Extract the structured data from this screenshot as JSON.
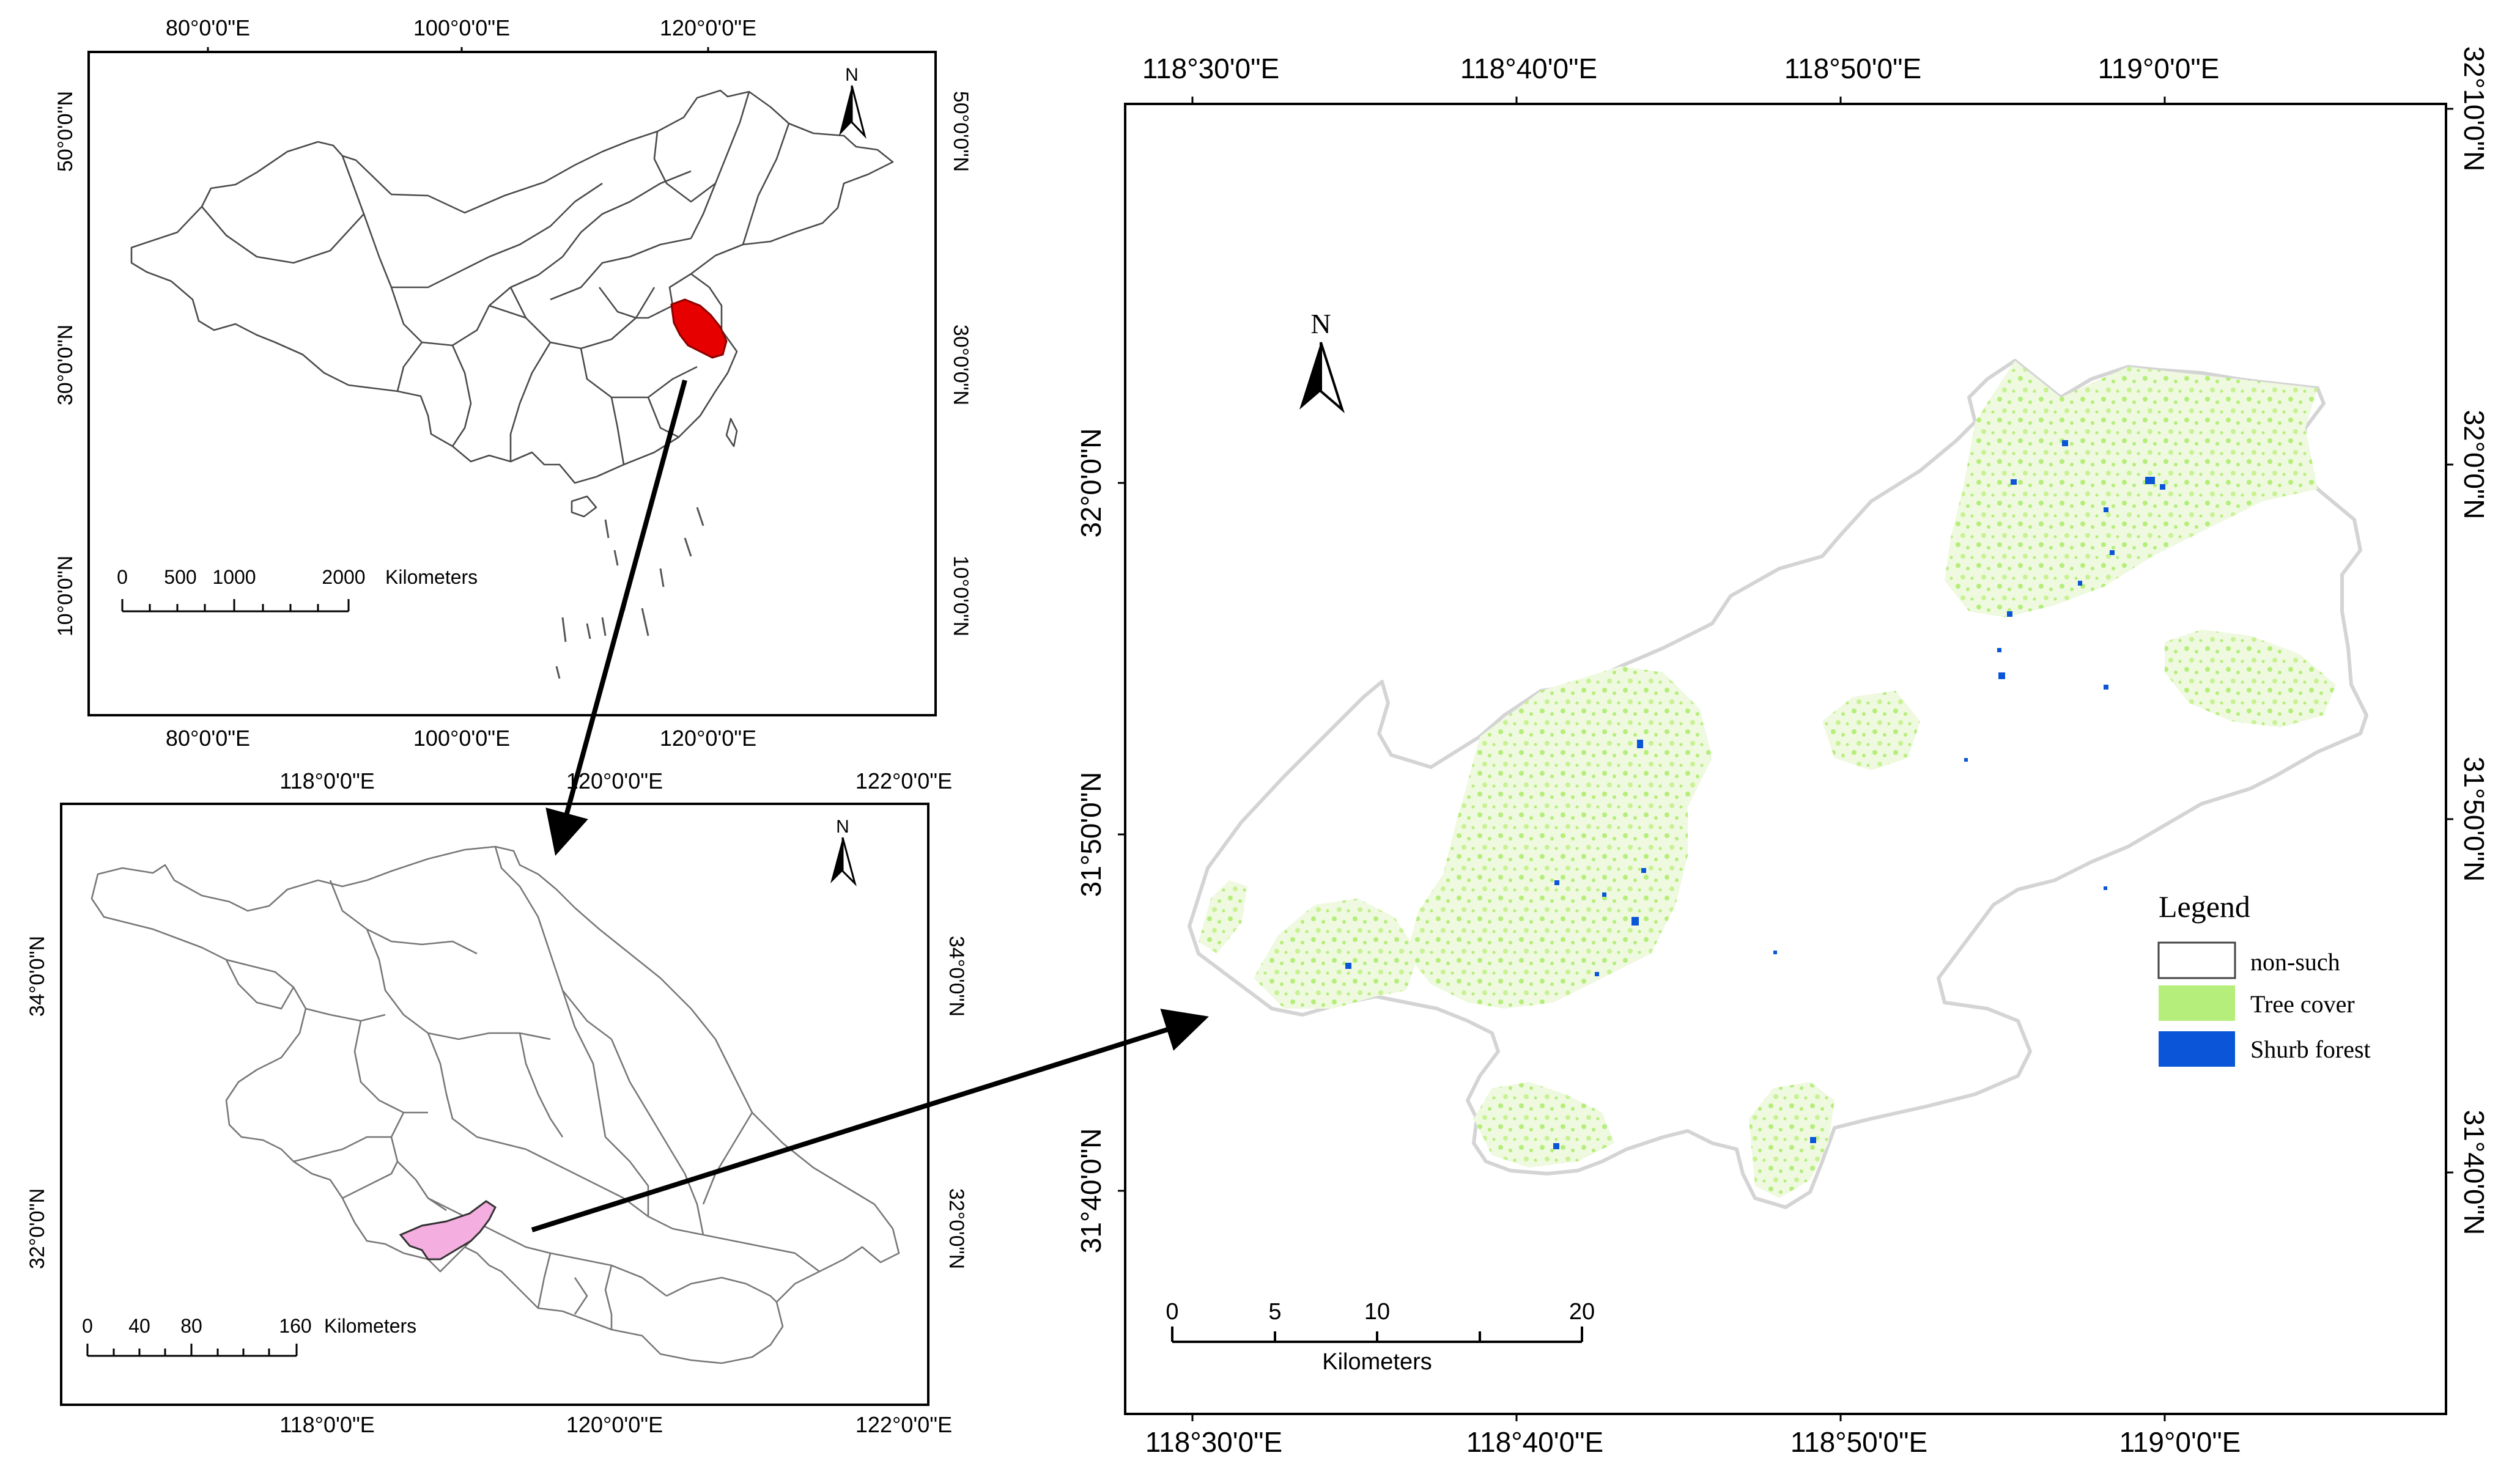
{
  "china_map": {
    "top_axis": [
      "80°0'0\"E",
      "100°0'0\"E",
      "120°0'0\"E"
    ],
    "bottom_axis": [
      "80°0'0\"E",
      "100°0'0\"E",
      "120°0'0\"E"
    ],
    "left_axis": [
      "50°0'0\"N",
      "30°0'0\"N",
      "10°0'0\"N"
    ],
    "right_axis": [
      "50°0'0\"N",
      "30°0'0\"N",
      "10°0'0\"N"
    ],
    "north": "N",
    "scale_numbers": [
      "0",
      "500",
      "1000",
      "2000"
    ],
    "scale_unit": "Kilometers",
    "highlight_color": "#e60000"
  },
  "jiangsu_map": {
    "top_axis": [
      "118°0'0\"E",
      "120°0'0\"E",
      "122°0'0\"E"
    ],
    "bottom_axis": [
      "118°0'0\"E",
      "120°0'0\"E",
      "122°0'0\"E"
    ],
    "left_axis": [
      "34°0'0\"N",
      "32°0'0\"N"
    ],
    "right_axis": [
      "34°0'0\"N",
      "32°0'0\"N"
    ],
    "north": "N",
    "scale_numbers": [
      "0",
      "40",
      "80",
      "160"
    ],
    "scale_unit": "Kilometers",
    "highlight_color": "#f5aee0"
  },
  "study_map": {
    "top_axis": [
      "118°30'0\"E",
      "118°40'0\"E",
      "118°50'0\"E",
      "119°0'0\"E"
    ],
    "bottom_axis": [
      "118°30'0\"E",
      "118°40'0\"E",
      "118°50'0\"E",
      "119°0'0\"E"
    ],
    "left_axis": [
      "32°0'0\"N",
      "31°50'0\"N",
      "31°40'0\"N"
    ],
    "right_axis": [
      "32°10'0\"N",
      "32°0'0\"N",
      "31°50'0\"N",
      "31°40'0\"N"
    ],
    "north": "N",
    "scale_numbers": [
      "0",
      "5",
      "10",
      "20"
    ],
    "scale_unit": "Kilometers",
    "legend": {
      "title": "Legend",
      "items": [
        {
          "label": "non-such",
          "color": "#ffffff"
        },
        {
          "label": "Tree cover",
          "color": "#b5ee7a"
        },
        {
          "label": "Shurb forest",
          "color": "#0a55d8"
        }
      ]
    }
  }
}
